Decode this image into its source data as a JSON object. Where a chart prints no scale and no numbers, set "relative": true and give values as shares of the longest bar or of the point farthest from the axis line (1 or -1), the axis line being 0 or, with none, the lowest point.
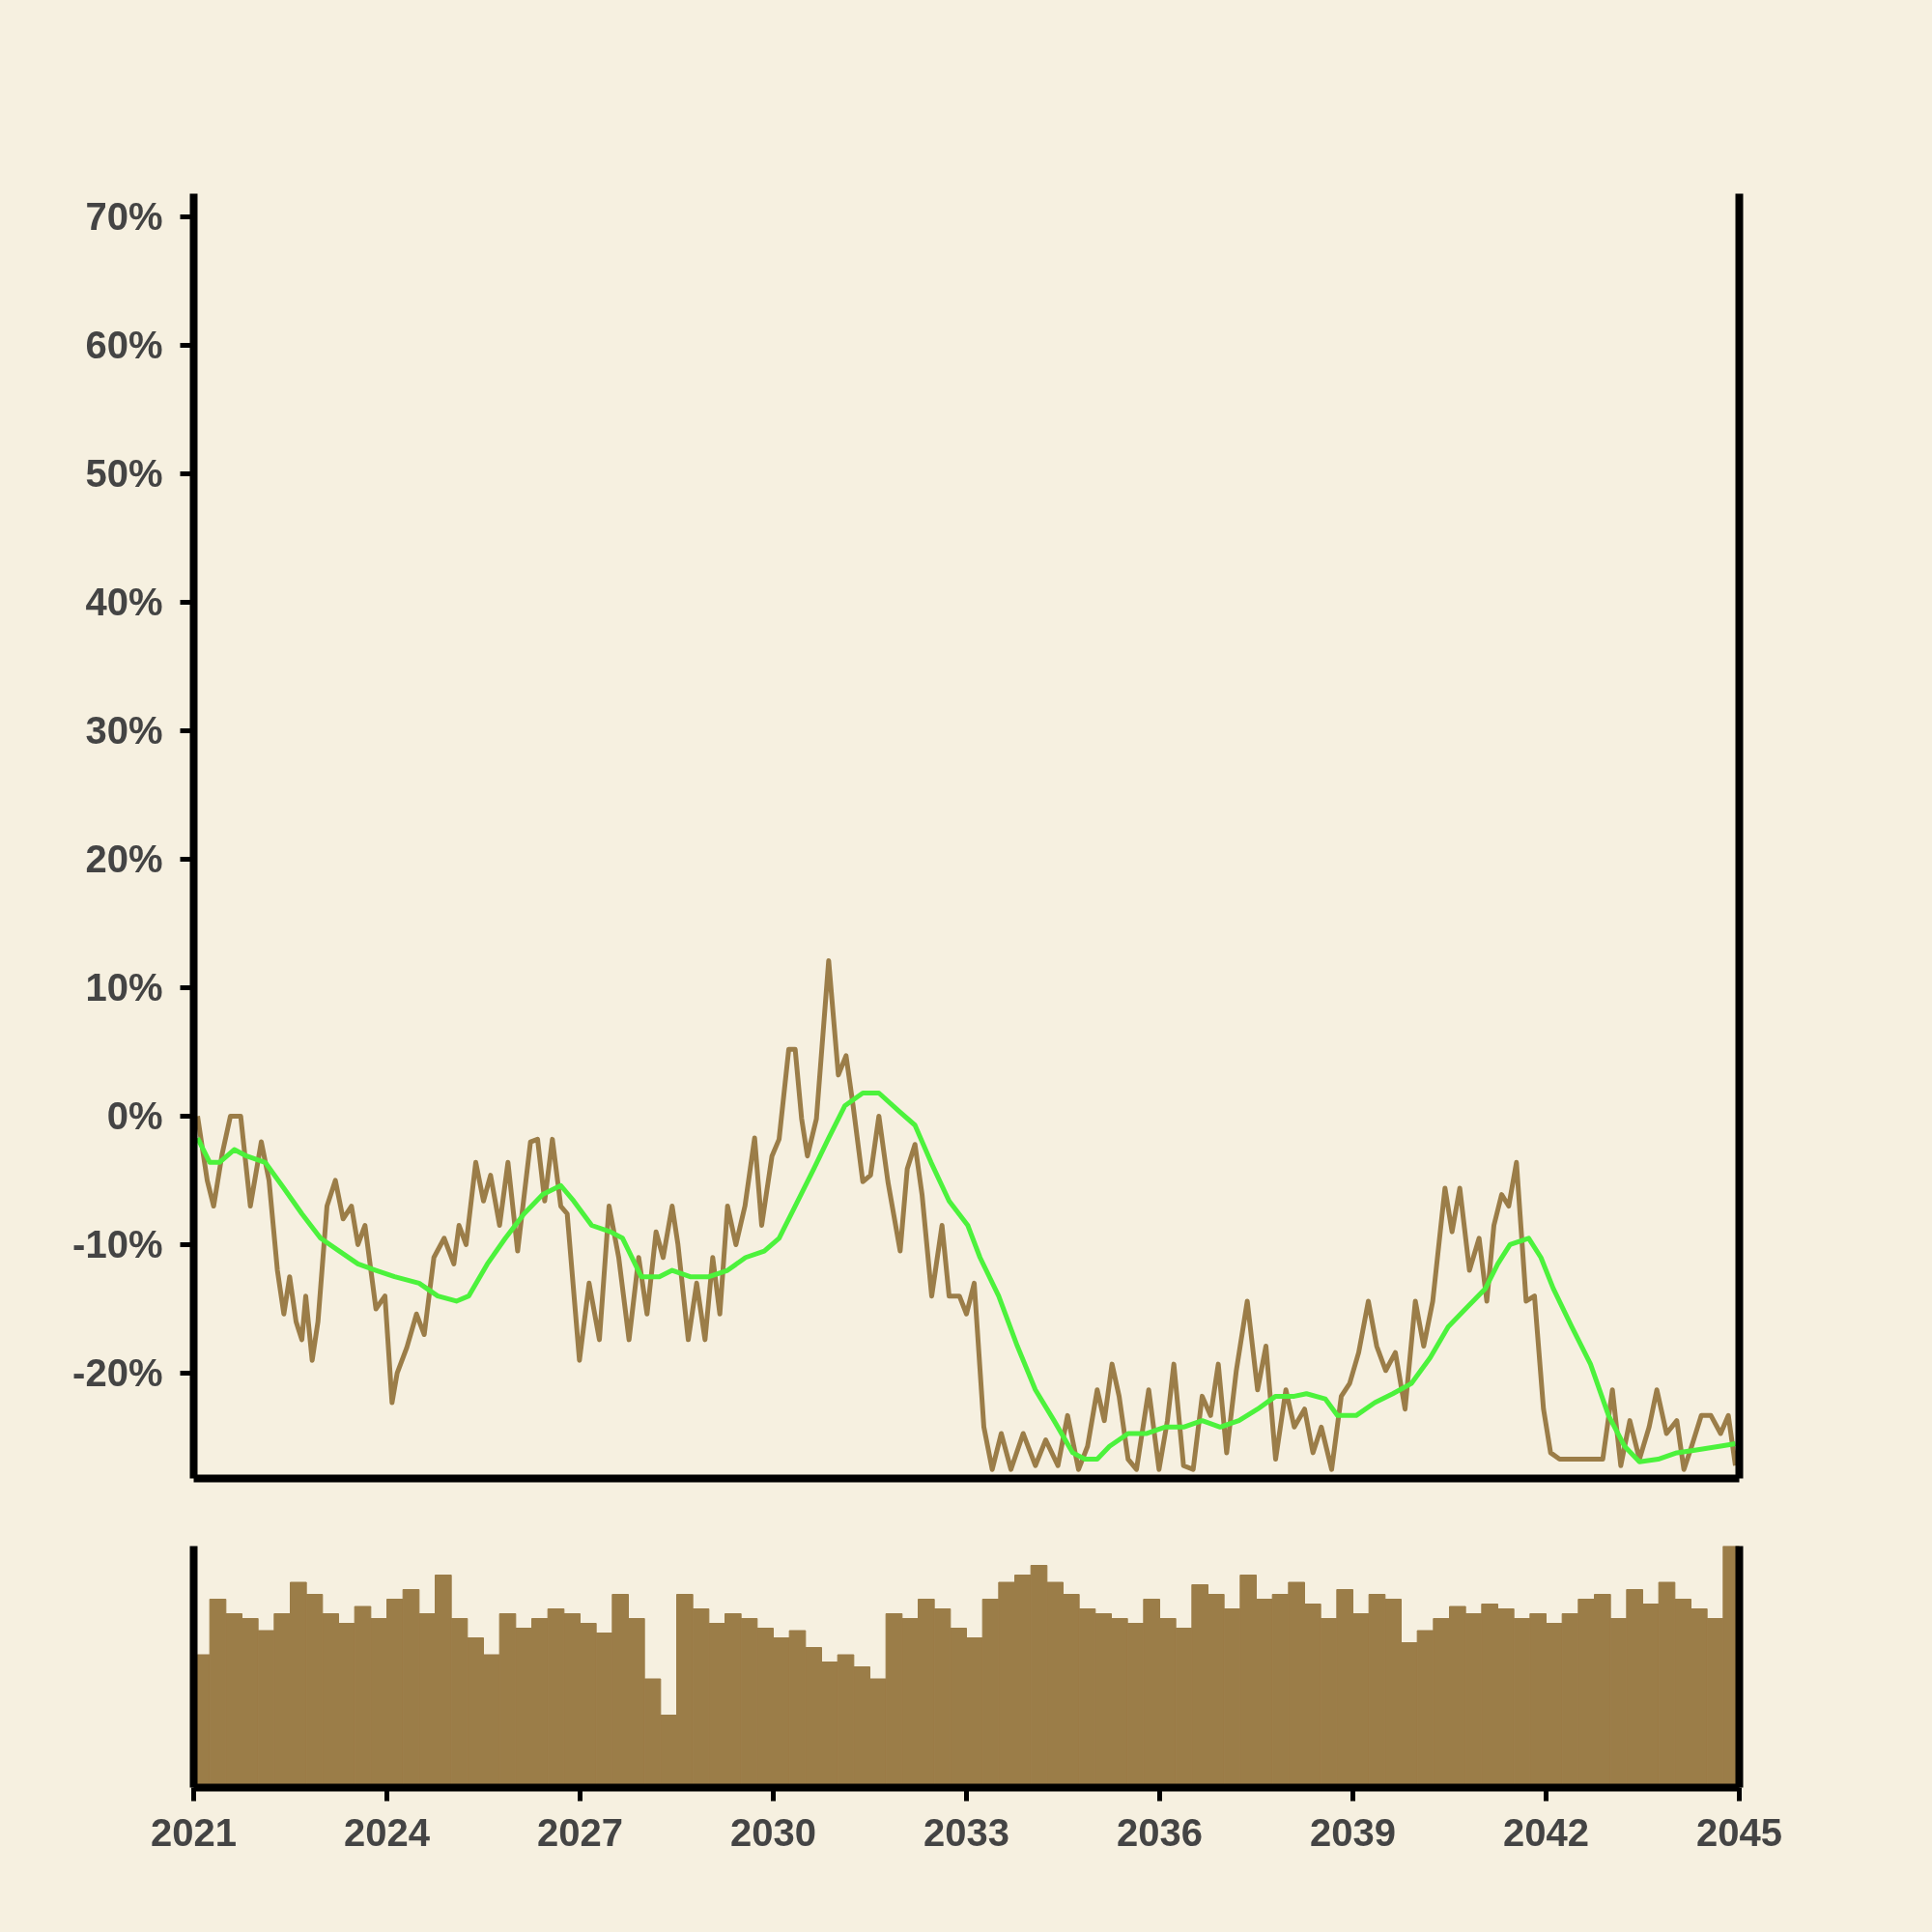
{
  "chart_data": [
    {
      "type": "line",
      "xlim": [
        2021,
        2045
      ],
      "ylim": [
        -28.2,
        71.8
      ],
      "tick_labels": "y",
      "yticks": [
        {
          "value": -20,
          "label": "-20%"
        },
        {
          "value": -10,
          "label": "-10%"
        },
        {
          "value": 0,
          "label": "0%"
        },
        {
          "value": 10,
          "label": "10%"
        },
        {
          "value": 20,
          "label": "20%"
        },
        {
          "value": 30,
          "label": "30%"
        },
        {
          "value": 40,
          "label": "40%"
        },
        {
          "value": 50,
          "label": "50%"
        },
        {
          "value": 60,
          "label": "60%"
        },
        {
          "value": 70,
          "label": "70%"
        }
      ],
      "series": [
        {
          "color": "#9b7d48",
          "x": [
            2021.06,
            2021.21,
            2021.31,
            2021.44,
            2021.57,
            2021.73,
            2021.88,
            2022.05,
            2022.17,
            2022.3,
            2022.4,
            2022.49,
            2022.59,
            2022.68,
            2022.74,
            2022.84,
            2022.93,
            2023.07,
            2023.2,
            2023.32,
            2023.45,
            2023.55,
            2023.66,
            2023.83,
            2023.97,
            2024.08,
            2024.16,
            2024.31,
            2024.46,
            2024.58,
            2024.73,
            2024.89,
            2025.04,
            2025.12,
            2025.23,
            2025.38,
            2025.5,
            2025.61,
            2025.75,
            2025.88,
            2026.03,
            2026.23,
            2026.34,
            2026.45,
            2026.57,
            2026.7,
            2026.8,
            2026.99,
            2027.14,
            2027.3,
            2027.45,
            2027.6,
            2027.76,
            2027.91,
            2028.04,
            2028.18,
            2028.29,
            2028.43,
            2028.52,
            2028.68,
            2028.81,
            2028.94,
            2029.06,
            2029.17,
            2029.29,
            2029.42,
            2029.56,
            2029.71,
            2029.82,
            2029.98,
            2030.09,
            2030.24,
            2030.34,
            2030.44,
            2030.53,
            2030.67,
            2030.86,
            2031.01,
            2031.13,
            2031.24,
            2031.39,
            2031.51,
            2031.64,
            2031.78,
            2031.97,
            2032.08,
            2032.2,
            2032.31,
            2032.46,
            2032.62,
            2032.73,
            2032.89,
            2033.0,
            2033.12,
            2033.27,
            2033.4,
            2033.54,
            2033.69,
            2033.88,
            2034.07,
            2034.23,
            2034.42,
            2034.57,
            2034.74,
            2034.88,
            2035.03,
            2035.14,
            2035.26,
            2035.37,
            2035.51,
            2035.64,
            2035.83,
            2035.99,
            2036.12,
            2036.22,
            2036.37,
            2036.52,
            2036.66,
            2036.79,
            2036.91,
            2037.04,
            2037.19,
            2037.36,
            2037.52,
            2037.65,
            2037.8,
            2037.96,
            2038.09,
            2038.25,
            2038.38,
            2038.51,
            2038.67,
            2038.82,
            2038.95,
            2039.09,
            2039.24,
            2039.37,
            2039.51,
            2039.66,
            2039.81,
            2039.97,
            2040.1,
            2040.24,
            2040.43,
            2040.54,
            2040.66,
            2040.81,
            2040.96,
            2041.08,
            2041.19,
            2041.31,
            2041.42,
            2041.54,
            2041.69,
            2041.82,
            2041.96,
            2042.07,
            2042.21,
            2042.4,
            2042.69,
            2042.88,
            2043.03,
            2043.16,
            2043.3,
            2043.45,
            2043.6,
            2043.72,
            2043.87,
            2044.03,
            2044.14,
            2044.26,
            2044.41,
            2044.56,
            2044.71,
            2044.83,
            2044.94
          ],
          "values": [
            0,
            -5,
            -7,
            -3,
            0,
            0,
            -7,
            -2,
            -5,
            -12,
            -15.4,
            -12.5,
            -16,
            -17.4,
            -14,
            -19,
            -16,
            -7,
            -5,
            -8,
            -7,
            -10,
            -8.5,
            -15,
            -14,
            -22.3,
            -20,
            -18,
            -15.4,
            -17,
            -11,
            -9.5,
            -11.5,
            -8.5,
            -10,
            -3.6,
            -6.6,
            -4.6,
            -8.5,
            -3.6,
            -10.5,
            -2,
            -1.8,
            -6.6,
            -1.8,
            -7,
            -7.6,
            -19,
            -13,
            -17.4,
            -7,
            -11,
            -17.4,
            -11,
            -15.4,
            -9,
            -11,
            -7,
            -10,
            -17.4,
            -13,
            -17.4,
            -11,
            -15.4,
            -7,
            -10,
            -7,
            -1.7,
            -8.5,
            -3.1,
            -1.8,
            5.2,
            5.2,
            -0.2,
            -3.1,
            -0.2,
            12.1,
            3.2,
            4.7,
            0.8,
            -5.1,
            -4.6,
            0,
            -5.1,
            -10.5,
            -4.1,
            -2.2,
            -6.1,
            -14,
            -8.5,
            -14,
            -14,
            -15.4,
            -13,
            -24.2,
            -27.5,
            -24.7,
            -27.5,
            -24.7,
            -27.2,
            -25.2,
            -27.2,
            -23.3,
            -27.5,
            -25.7,
            -21.3,
            -23.7,
            -19.3,
            -21.8,
            -26.7,
            -27.5,
            -21.3,
            -27.5,
            -23.7,
            -19.3,
            -27.2,
            -27.5,
            -21.8,
            -23.3,
            -19.3,
            -26.2,
            -19.8,
            -14.4,
            -21.3,
            -17.9,
            -26.7,
            -21.3,
            -24.2,
            -22.8,
            -26.2,
            -24.2,
            -27.5,
            -21.8,
            -20.8,
            -18.4,
            -14.4,
            -17.9,
            -19.8,
            -18.4,
            -22.8,
            -14.4,
            -17.9,
            -14.4,
            -5.6,
            -9,
            -5.6,
            -12,
            -9.5,
            -14.4,
            -8.5,
            -6.1,
            -7,
            -3.6,
            -14.4,
            -14,
            -22.8,
            -26.2,
            -26.7,
            -26.7,
            -26.7,
            -26.7,
            -21.3,
            -27.2,
            -23.7,
            -26.7,
            -24.2,
            -21.3,
            -24.7,
            -23.7,
            -27.5,
            -25.7,
            -23.3,
            -23.3,
            -24.7,
            -23.3,
            -27.2
          ]
        },
        {
          "color": "#4cf23c",
          "x": [
            2021.06,
            2021.25,
            2021.4,
            2021.63,
            2021.82,
            2022.11,
            2022.4,
            2022.68,
            2022.97,
            2023.26,
            2023.55,
            2023.83,
            2024.12,
            2024.5,
            2024.79,
            2025.08,
            2025.27,
            2025.56,
            2025.84,
            2026.13,
            2026.42,
            2026.7,
            2026.9,
            2027.18,
            2027.47,
            2027.66,
            2027.95,
            2028.23,
            2028.43,
            2028.71,
            2029.0,
            2029.29,
            2029.57,
            2029.86,
            2030.09,
            2030.34,
            2030.63,
            2030.86,
            2031.11,
            2031.39,
            2031.64,
            2031.97,
            2032.2,
            2032.45,
            2032.73,
            2033.02,
            2033.21,
            2033.5,
            2033.79,
            2034.07,
            2034.36,
            2034.65,
            2034.84,
            2035.03,
            2035.22,
            2035.51,
            2035.8,
            2036.08,
            2036.37,
            2036.66,
            2036.94,
            2037.23,
            2037.52,
            2037.8,
            2038.09,
            2038.28,
            2038.57,
            2038.76,
            2039.05,
            2039.34,
            2039.62,
            2039.91,
            2040.2,
            2040.48,
            2040.77,
            2041.06,
            2041.25,
            2041.44,
            2041.73,
            2041.92,
            2042.11,
            2042.4,
            2042.69,
            2042.97,
            2043.22,
            2043.45,
            2043.74,
            2044.03,
            2044.31,
            2044.69,
            2044.94
          ],
          "values": [
            -1.7,
            -3.6,
            -3.6,
            -2.6,
            -3.1,
            -3.6,
            -5.6,
            -7.6,
            -9.5,
            -10.5,
            -11.5,
            -12,
            -12.5,
            -13,
            -14,
            -14.4,
            -14,
            -11.5,
            -9.5,
            -7.6,
            -6.1,
            -5.4,
            -6.6,
            -8.5,
            -9,
            -9.5,
            -12.5,
            -12.5,
            -12,
            -12.5,
            -12.5,
            -12,
            -11,
            -10.5,
            -9.5,
            -7,
            -4.1,
            -1.7,
            0.8,
            1.8,
            1.8,
            0.3,
            -0.7,
            -3.6,
            -6.6,
            -8.5,
            -11,
            -14,
            -17.9,
            -21.3,
            -23.7,
            -26.2,
            -26.7,
            -26.7,
            -25.7,
            -24.7,
            -24.7,
            -24.2,
            -24.2,
            -23.7,
            -24.2,
            -23.7,
            -22.8,
            -21.8,
            -21.8,
            -21.6,
            -22,
            -23.3,
            -23.3,
            -22.3,
            -21.6,
            -20.8,
            -18.8,
            -16.4,
            -14.9,
            -13.4,
            -11.5,
            -10,
            -9.5,
            -11,
            -13.4,
            -16.4,
            -19.3,
            -23.3,
            -25.7,
            -26.9,
            -26.7,
            -26.2,
            -26,
            -25.7,
            -25.5
          ]
        }
      ]
    },
    {
      "type": "bar",
      "relative": true,
      "xlim": [
        2021,
        2045
      ],
      "tick_labels": "x",
      "xticks": [
        2021,
        2024,
        2027,
        2030,
        2033,
        2036,
        2039,
        2042,
        2045
      ],
      "series": [
        {
          "color": "#9b7d48",
          "x": [
            2021.125,
            2021.375,
            2021.625,
            2021.875,
            2022.125,
            2022.375,
            2022.625,
            2022.875,
            2023.125,
            2023.375,
            2023.625,
            2023.875,
            2024.125,
            2024.375,
            2024.625,
            2024.875,
            2025.125,
            2025.375,
            2025.625,
            2025.875,
            2026.125,
            2026.375,
            2026.625,
            2026.875,
            2027.125,
            2027.375,
            2027.625,
            2027.875,
            2028.125,
            2028.375,
            2028.625,
            2028.875,
            2029.125,
            2029.375,
            2029.625,
            2029.875,
            2030.125,
            2030.375,
            2030.625,
            2030.875,
            2031.125,
            2031.375,
            2031.625,
            2031.875,
            2032.125,
            2032.375,
            2032.625,
            2032.875,
            2033.125,
            2033.375,
            2033.625,
            2033.875,
            2034.125,
            2034.375,
            2034.625,
            2034.875,
            2035.125,
            2035.375,
            2035.625,
            2035.875,
            2036.125,
            2036.375,
            2036.625,
            2036.875,
            2037.125,
            2037.375,
            2037.625,
            2037.875,
            2038.125,
            2038.375,
            2038.625,
            2038.875,
            2039.125,
            2039.375,
            2039.625,
            2039.875,
            2040.125,
            2040.375,
            2040.625,
            2040.875,
            2041.125,
            2041.375,
            2041.625,
            2041.875,
            2042.125,
            2042.375,
            2042.625,
            2042.875,
            2043.125,
            2043.375,
            2043.625,
            2043.875,
            2044.125,
            2044.375,
            2044.625,
            2044.875
          ],
          "values": [
            0.55,
            0.78,
            0.72,
            0.7,
            0.65,
            0.72,
            0.85,
            0.8,
            0.72,
            0.68,
            0.75,
            0.7,
            0.78,
            0.82,
            0.72,
            0.88,
            0.7,
            0.62,
            0.55,
            0.72,
            0.66,
            0.7,
            0.74,
            0.72,
            0.68,
            0.64,
            0.8,
            0.7,
            0.45,
            0.3,
            0.8,
            0.74,
            0.68,
            0.72,
            0.7,
            0.66,
            0.62,
            0.65,
            0.58,
            0.52,
            0.55,
            0.5,
            0.45,
            0.72,
            0.7,
            0.78,
            0.74,
            0.66,
            0.62,
            0.78,
            0.85,
            0.88,
            0.92,
            0.85,
            0.8,
            0.74,
            0.72,
            0.7,
            0.68,
            0.78,
            0.7,
            0.66,
            0.84,
            0.8,
            0.74,
            0.88,
            0.78,
            0.8,
            0.85,
            0.76,
            0.7,
            0.82,
            0.72,
            0.8,
            0.78,
            0.6,
            0.65,
            0.7,
            0.75,
            0.72,
            0.76,
            0.74,
            0.7,
            0.72,
            0.68,
            0.72,
            0.78,
            0.8,
            0.7,
            0.82,
            0.76,
            0.85,
            0.78,
            0.74,
            0.7,
            1.0
          ]
        }
      ]
    }
  ]
}
